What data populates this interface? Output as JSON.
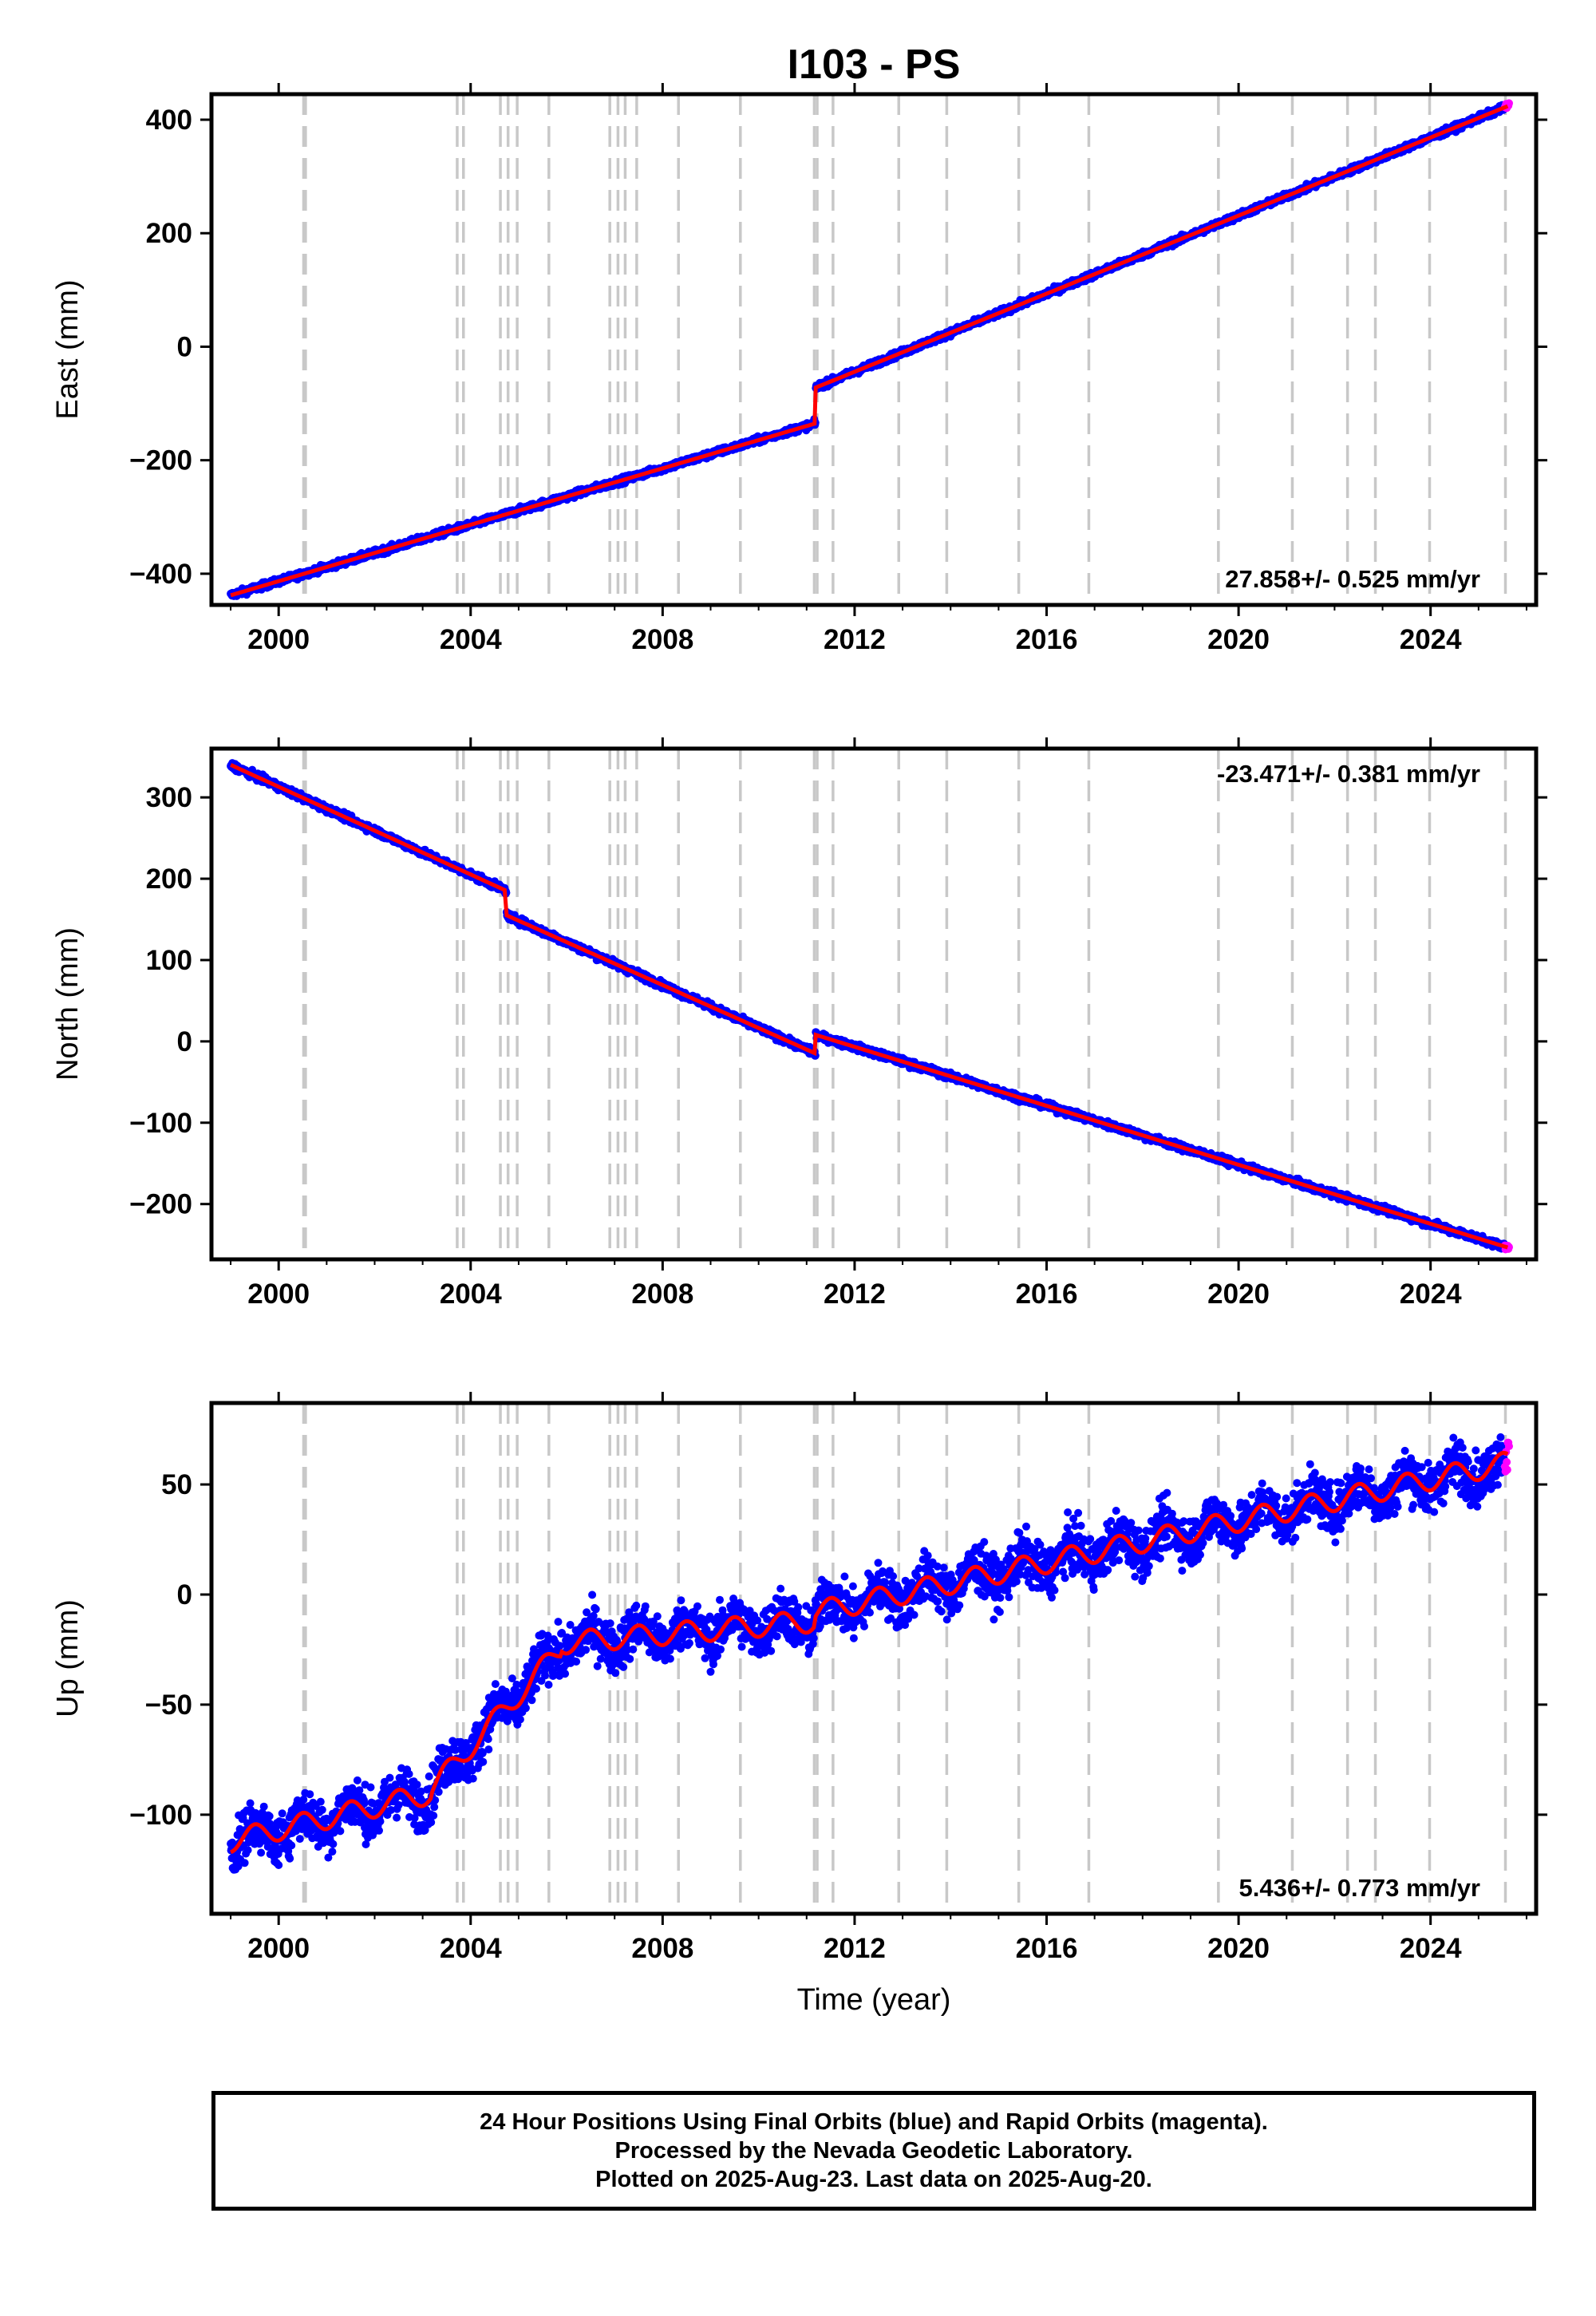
{
  "chart_data": [
    {
      "type": "scatter",
      "title": "I103 - PS",
      "ylabel": "East (mm)",
      "xlabel": "",
      "xlim": [
        1998.6,
        2026.2
      ],
      "ylim": [
        -455,
        445
      ],
      "xticks": [
        2000,
        2004,
        2008,
        2012,
        2016,
        2020,
        2024
      ],
      "yticks": [
        -400,
        -200,
        0,
        200,
        400
      ],
      "grid": false,
      "rate_label": "27.858+/- 0.525 mm/yr",
      "rate_position": "bottom-right",
      "steps": [
        {
          "start": 1999.0,
          "end": 2011.19,
          "v0": -438,
          "v1": -135
        },
        {
          "start": 2011.19,
          "end": 2025.64,
          "v0": -72,
          "v1": 425
        }
      ],
      "noise_mm": 4,
      "seasonal_mm": 0,
      "series": [
        {
          "name": "Final Orbits (blue)",
          "color": "#0000ff",
          "x_range": [
            1999.0,
            2025.55
          ]
        },
        {
          "name": "Rapid Orbits (magenta)",
          "color": "#ff00ff",
          "x_range": [
            2025.55,
            2025.64
          ]
        },
        {
          "name": "Model",
          "color": "#ff0000"
        }
      ]
    },
    {
      "type": "scatter",
      "title": "",
      "ylabel": "North (mm)",
      "xlabel": "",
      "xlim": [
        1998.6,
        2026.2
      ],
      "ylim": [
        -268,
        360
      ],
      "xticks": [
        2000,
        2004,
        2008,
        2012,
        2016,
        2020,
        2024
      ],
      "yticks": [
        -200,
        -100,
        0,
        100,
        200,
        300
      ],
      "grid": false,
      "rate_label": "-23.471+/- 0.381 mm/yr",
      "rate_position": "top-right",
      "steps": [
        {
          "start": 1999.0,
          "end": 2004.75,
          "v0": 340,
          "v1": 185
        },
        {
          "start": 2004.75,
          "end": 2011.19,
          "v0": 155,
          "v1": -15
        },
        {
          "start": 2011.19,
          "end": 2025.64,
          "v0": 8,
          "v1": -254
        }
      ],
      "noise_mm": 3,
      "seasonal_mm": 0,
      "series": [
        {
          "name": "Final Orbits (blue)",
          "color": "#0000ff",
          "x_range": [
            1999.0,
            2025.55
          ]
        },
        {
          "name": "Rapid Orbits (magenta)",
          "color": "#ff00ff",
          "x_range": [
            2025.55,
            2025.64
          ]
        },
        {
          "name": "Model",
          "color": "#ff0000"
        }
      ]
    },
    {
      "type": "scatter",
      "title": "",
      "ylabel": "Up (mm)",
      "xlabel": "Time (year)",
      "xlim": [
        1998.6,
        2026.2
      ],
      "ylim": [
        -145,
        87
      ],
      "xticks": [
        2000,
        2004,
        2008,
        2012,
        2016,
        2020,
        2024
      ],
      "yticks": [
        -100,
        -50,
        0,
        50
      ],
      "grid": false,
      "rate_label": "5.436+/- 0.773 mm/yr",
      "rate_position": "bottom-right",
      "steps": [
        {
          "start": 1999.0,
          "end": 2003.2,
          "v0": -112,
          "v1": -90
        },
        {
          "start": 2003.2,
          "end": 2005.9,
          "v0": -88,
          "v1": -24
        },
        {
          "start": 2005.9,
          "end": 2011.19,
          "v0": -22,
          "v1": -12
        },
        {
          "start": 2011.19,
          "end": 2025.64,
          "v0": -8,
          "v1": 60
        }
      ],
      "noise_mm": 8,
      "seasonal_mm": 5,
      "series": [
        {
          "name": "Final Orbits (blue)",
          "color": "#0000ff",
          "x_range": [
            1999.0,
            2025.55
          ]
        },
        {
          "name": "Rapid Orbits (magenta)",
          "color": "#ff00ff",
          "x_range": [
            2025.55,
            2025.64
          ]
        },
        {
          "name": "Model",
          "color": "#ff0000"
        }
      ]
    }
  ],
  "event_lines": [
    2000.52,
    2000.56,
    2003.72,
    2003.85,
    2004.62,
    2004.78,
    2004.97,
    2005.63,
    2006.9,
    2007.07,
    2007.22,
    2007.46,
    2008.33,
    2009.62,
    2011.16,
    2011.22,
    2011.55,
    2012.92,
    2013.92,
    2015.42,
    2016.88,
    2019.58,
    2021.12,
    2022.27,
    2022.85,
    2023.98,
    2025.56
  ],
  "colors": {
    "event_line": "#c8c8c8",
    "axes": "#000000"
  },
  "footer": {
    "line1": "24 Hour Positions Using Final Orbits (blue) and Rapid Orbits (magenta).",
    "line2": "Processed by the Nevada Geodetic Laboratory.",
    "line3": "Plotted on 2025-Aug-23. Last data on 2025-Aug-20."
  }
}
